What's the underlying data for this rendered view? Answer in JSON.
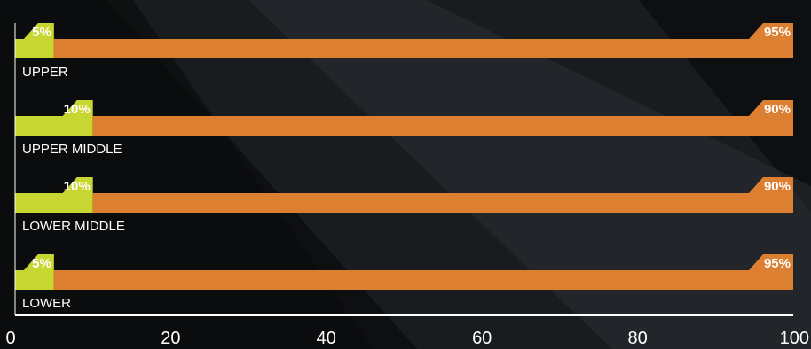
{
  "chart_data": {
    "type": "bar",
    "orientation": "horizontal",
    "stacked": true,
    "categories": [
      "UPPER",
      "UPPER MIDDLE",
      "LOWER MIDDLE",
      "LOWER"
    ],
    "series": [
      {
        "values": [
          5,
          10,
          10,
          5
        ],
        "labels": [
          "5%",
          "10%",
          "10%",
          "5%"
        ],
        "color": "#c8d631"
      },
      {
        "values": [
          95,
          90,
          90,
          95
        ],
        "labels": [
          "95%",
          "90%",
          "90%",
          "95%"
        ],
        "color": "#dd7f31"
      }
    ],
    "xlim": [
      0,
      100
    ],
    "xticks": [
      "0",
      "20",
      "40",
      "60",
      "80",
      "100"
    ],
    "grid": false,
    "legend": false
  }
}
